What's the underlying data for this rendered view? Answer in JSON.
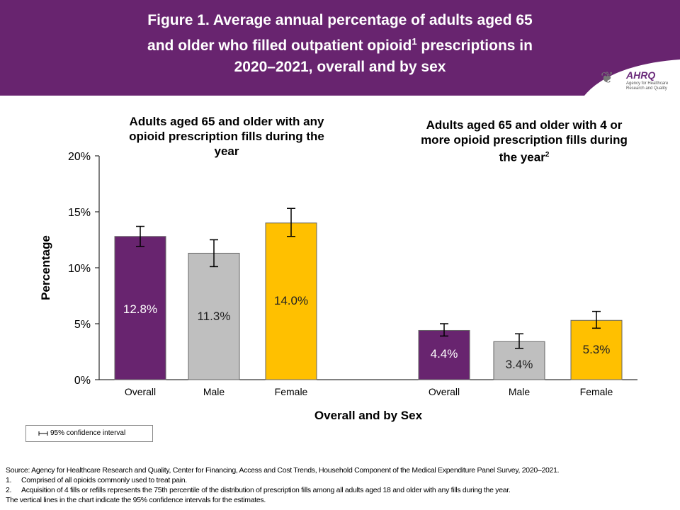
{
  "header": {
    "title_line1": "Figure 1. Average annual percentage of adults aged 65",
    "title_line2a": "and older who filled outpatient opioid",
    "title_sup": "1",
    "title_line2b": " prescriptions in",
    "title_line3": "2020–2021, overall and by sex",
    "background_color": "#68246F",
    "logo": {
      "name": "AHRQ",
      "subtitle": "Agency for Healthcare Research and Quality"
    }
  },
  "chart_data": {
    "type": "bar",
    "ylabel": "Percentage",
    "xlabel": "Overall and by Sex",
    "ylim": [
      0,
      20
    ],
    "yticks": [
      "0%",
      "5%",
      "10%",
      "15%",
      "20%"
    ],
    "ytick_values": [
      0,
      5,
      10,
      15,
      20
    ],
    "grid": false,
    "colors": {
      "Overall": "#68246F",
      "Male": "#BFBFBF",
      "Female": "#FFC000"
    },
    "panels": [
      {
        "title": "Adults aged 65 and older with any opioid prescription fills during the year",
        "title_lines": [
          "Adults aged 65 and older with any",
          "opioid prescription fills during the",
          "year"
        ],
        "title_sup": "",
        "categories": [
          "Overall",
          "Male",
          "Female"
        ],
        "values": [
          12.8,
          11.3,
          14.0
        ],
        "labels": [
          "12.8%",
          "11.3%",
          "14.0%"
        ],
        "ci_low": [
          11.9,
          10.1,
          12.8
        ],
        "ci_high": [
          13.7,
          12.5,
          15.3
        ]
      },
      {
        "title": "Adults aged 65 and older with 4 or more opioid prescription fills during the year2",
        "title_lines": [
          "Adults aged 65 and older with 4 or",
          "more opioid prescription fills during",
          "the year"
        ],
        "title_sup": "2",
        "categories": [
          "Overall",
          "Male",
          "Female"
        ],
        "values": [
          4.4,
          3.4,
          5.3
        ],
        "labels": [
          "4.4%",
          "3.4%",
          "5.3%"
        ],
        "ci_low": [
          3.9,
          2.8,
          4.6
        ],
        "ci_high": [
          5.0,
          4.1,
          6.1
        ]
      }
    ],
    "legend": {
      "label": "95% confidence interval",
      "placement": "bottom-left"
    }
  },
  "footnotes": {
    "source": "Source: Agency for Healthcare Research and Quality, Center for Financing, Access and Cost Trends, Household Component of the Medical Expenditure Panel Survey, 2020–2021.",
    "notes": [
      {
        "num": "1.",
        "text": "Comprised of all opioids commonly used to treat pain."
      },
      {
        "num": "2.",
        "text": "Acquisition of 4 fills or refills represents the 75th percentile of the distribution of prescription fills among all adults aged 18 and older with any fills during the year."
      }
    ],
    "ci_note": "The vertical lines in the chart indicate the 95% confidence intervals for the estimates."
  }
}
